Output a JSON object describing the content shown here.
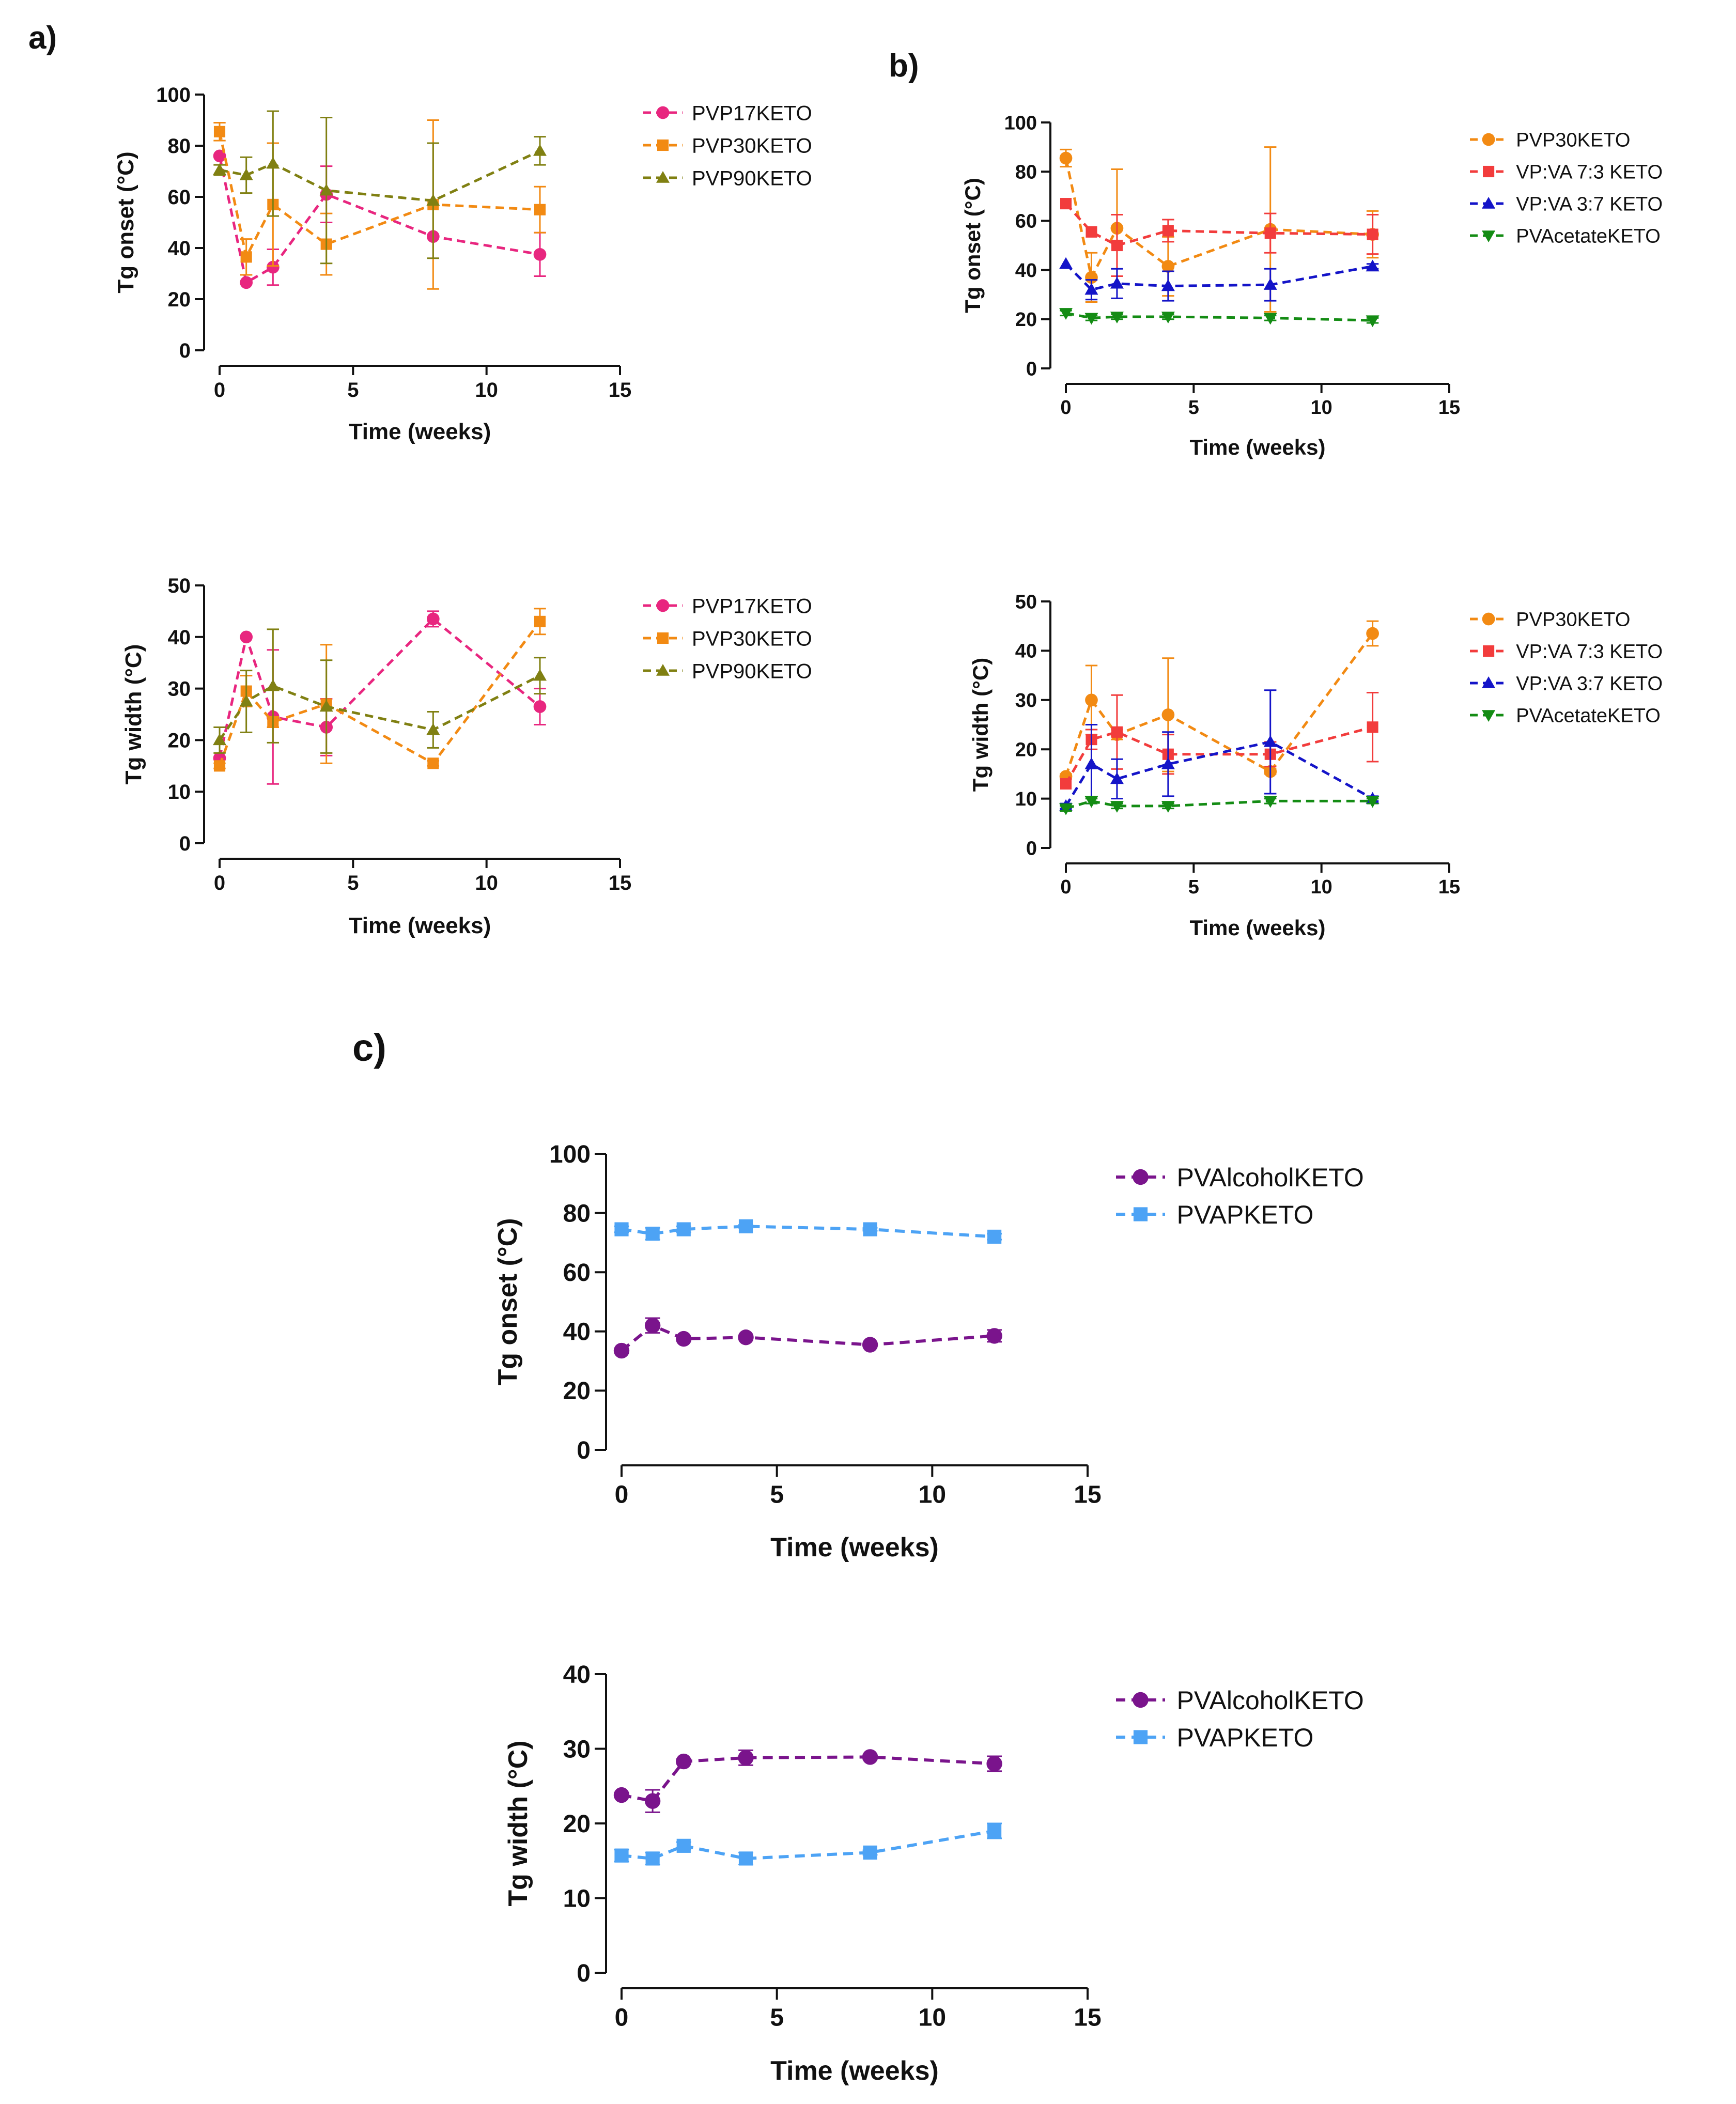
{
  "figure": {
    "panel_labels": [
      "a)",
      "b)",
      "c)"
    ]
  },
  "chart_data": [
    {
      "id": "a-onset",
      "panel": "a)",
      "type": "line",
      "xlabel": "Time (weeks)",
      "ylabel": "Tg onset (°C)",
      "xlim": [
        0,
        15
      ],
      "ylim": [
        0,
        100
      ],
      "xticks": [
        0,
        5,
        10,
        15
      ],
      "yticks": [
        0,
        20,
        40,
        60,
        80,
        100
      ],
      "x": [
        0,
        1,
        2,
        4,
        8,
        12
      ],
      "series": [
        {
          "name": "PVP17KETO",
          "color": "#e8267f",
          "marker": "circle",
          "values": [
            76,
            26.5,
            32.5,
            61,
            44.5,
            37.5
          ],
          "errors": [
            0,
            0,
            7,
            11,
            0,
            8.5
          ]
        },
        {
          "name": "PVP30KETO",
          "color": "#f28a13",
          "marker": "square",
          "values": [
            85.5,
            36.5,
            57,
            41.5,
            57,
            55
          ],
          "errors": [
            3.5,
            7,
            24,
            12,
            33,
            9
          ]
        },
        {
          "name": "PVP90KETO",
          "color": "#808012",
          "marker": "triangle",
          "values": [
            70.5,
            68.5,
            73,
            62.5,
            58.5,
            78
          ],
          "errors": [
            2,
            7,
            20.5,
            28.5,
            22.5,
            5.5
          ]
        }
      ]
    },
    {
      "id": "b-onset",
      "panel": "b)",
      "type": "line",
      "xlabel": "Time (weeks)",
      "ylabel": "Tg onset (°C)",
      "xlim": [
        0,
        15
      ],
      "ylim": [
        0,
        100
      ],
      "xticks": [
        0,
        5,
        10,
        15
      ],
      "yticks": [
        0,
        20,
        40,
        60,
        80,
        100
      ],
      "x": [
        0,
        1,
        2,
        4,
        8,
        12
      ],
      "series": [
        {
          "name": "PVP30KETO",
          "color": "#f28a13",
          "marker": "circle",
          "values": [
            85.5,
            37,
            57,
            41.5,
            56.5,
            54.5
          ],
          "errors": [
            3.5,
            10,
            24,
            12,
            33.5,
            9.5
          ]
        },
        {
          "name": "VP:VA 7:3 KETO",
          "color": "#f23c3c",
          "marker": "square",
          "values": [
            67,
            55.5,
            50,
            56,
            55,
            54.5
          ],
          "errors": [
            0,
            0,
            12.5,
            4.5,
            8,
            8
          ]
        },
        {
          "name": "VP:VA 3:7 KETO",
          "color": "#1414c8",
          "marker": "triangle",
          "values": [
            42.5,
            32,
            34.5,
            33.5,
            34,
            41.5
          ],
          "errors": [
            0,
            4,
            6,
            6,
            6.5,
            1
          ]
        },
        {
          "name": "PVAcetateKETO",
          "color": "#148c14",
          "marker": "triangle-down",
          "values": [
            22.5,
            20.5,
            21,
            21,
            20.5,
            19.5
          ],
          "errors": [
            1,
            1,
            1,
            1,
            1,
            1
          ]
        }
      ]
    },
    {
      "id": "a-width",
      "panel": "a)",
      "type": "line",
      "xlabel": "Time (weeks)",
      "ylabel": "Tg width (°C)",
      "xlim": [
        0,
        15
      ],
      "ylim": [
        0,
        50
      ],
      "xticks": [
        0,
        5,
        10,
        15
      ],
      "yticks": [
        0,
        10,
        20,
        30,
        40,
        50
      ],
      "x": [
        0,
        1,
        2,
        4,
        8,
        12
      ],
      "series": [
        {
          "name": "PVP17KETO",
          "color": "#e8267f",
          "marker": "circle",
          "values": [
            16.5,
            40,
            24.5,
            22.5,
            43.5,
            26.5
          ],
          "errors": [
            0,
            0,
            13,
            5.5,
            1.5,
            3.5
          ]
        },
        {
          "name": "PVP30KETO",
          "color": "#f28a13",
          "marker": "square",
          "values": [
            15,
            29.5,
            23.5,
            27,
            15.5,
            43
          ],
          "errors": [
            0.5,
            3,
            1,
            11.5,
            0.5,
            2.5
          ]
        },
        {
          "name": "PVP90KETO",
          "color": "#808012",
          "marker": "triangle",
          "values": [
            20,
            27.5,
            30.5,
            26.5,
            22,
            32.5
          ],
          "errors": [
            2.5,
            6,
            11,
            9,
            3.5,
            3.5
          ]
        }
      ]
    },
    {
      "id": "b-width",
      "panel": "b)",
      "type": "line",
      "xlabel": "Time (weeks)",
      "ylabel": "Tg width (°C)",
      "xlim": [
        0,
        15
      ],
      "ylim": [
        0,
        50
      ],
      "xticks": [
        0,
        5,
        10,
        15
      ],
      "yticks": [
        0,
        10,
        20,
        30,
        40,
        50
      ],
      "x": [
        0,
        1,
        2,
        4,
        8,
        12
      ],
      "series": [
        {
          "name": "PVP30KETO",
          "color": "#f28a13",
          "marker": "circle",
          "values": [
            14.5,
            30,
            23,
            27,
            15.5,
            43.5
          ],
          "errors": [
            0.5,
            7,
            1,
            11.5,
            0.5,
            2.5
          ]
        },
        {
          "name": "VP:VA 7:3 KETO",
          "color": "#f23c3c",
          "marker": "square",
          "values": [
            13,
            22,
            23.5,
            19,
            19,
            24.5
          ],
          "errors": [
            0,
            2,
            7.5,
            4,
            2.5,
            7
          ]
        },
        {
          "name": "VP:VA 3:7 KETO",
          "color": "#1414c8",
          "marker": "triangle",
          "values": [
            8.5,
            17,
            14,
            17,
            21.5,
            10
          ],
          "errors": [
            0.5,
            8,
            4,
            6.5,
            10.5,
            0.5
          ]
        },
        {
          "name": "PVAcetateKETO",
          "color": "#148c14",
          "marker": "triangle-down",
          "values": [
            8,
            9.5,
            8.5,
            8.5,
            9.5,
            9.5
          ],
          "errors": [
            0.5,
            0.5,
            0.5,
            0.5,
            0.5,
            0.5
          ]
        }
      ]
    },
    {
      "id": "c-onset",
      "panel": "c)",
      "type": "line",
      "xlabel": "Time (weeks)",
      "ylabel": "Tg onset (°C)",
      "xlim": [
        0,
        15
      ],
      "ylim": [
        0,
        100
      ],
      "xticks": [
        0,
        5,
        10,
        15
      ],
      "yticks": [
        0,
        20,
        40,
        60,
        80,
        100
      ],
      "x": [
        0,
        1,
        2,
        4,
        8,
        12
      ],
      "series": [
        {
          "name": "PVAlcoholKETO",
          "color": "#7a148c",
          "marker": "circle",
          "values": [
            33.5,
            42,
            37.5,
            38,
            35.5,
            38.5
          ],
          "errors": [
            0.5,
            2.5,
            0.5,
            0.5,
            0.5,
            2
          ]
        },
        {
          "name": "PVAPKETO",
          "color": "#4da3f5",
          "marker": "square",
          "values": [
            74.5,
            73,
            74.5,
            75.5,
            74.5,
            72
          ],
          "errors": [
            1,
            2,
            1,
            0.5,
            0.5,
            1
          ]
        }
      ]
    },
    {
      "id": "c-width",
      "panel": "c)",
      "type": "line",
      "xlabel": "Time (weeks)",
      "ylabel": "Tg width (°C)",
      "xlim": [
        0,
        15
      ],
      "ylim": [
        0,
        40
      ],
      "xticks": [
        0,
        5,
        10,
        15
      ],
      "yticks": [
        0,
        10,
        20,
        30,
        40
      ],
      "x": [
        0,
        1,
        2,
        4,
        8,
        12
      ],
      "series": [
        {
          "name": "PVAlcoholKETO",
          "color": "#7a148c",
          "marker": "circle",
          "values": [
            23.8,
            23,
            28.3,
            28.8,
            28.9,
            28
          ],
          "errors": [
            0.3,
            1.5,
            0.3,
            1,
            0.3,
            1
          ]
        },
        {
          "name": "PVAPKETO",
          "color": "#4da3f5",
          "marker": "square",
          "values": [
            15.7,
            15.3,
            17,
            15.3,
            16.1,
            19
          ],
          "errors": [
            0.8,
            0.8,
            0.5,
            0.8,
            0.3,
            1
          ]
        }
      ]
    }
  ]
}
